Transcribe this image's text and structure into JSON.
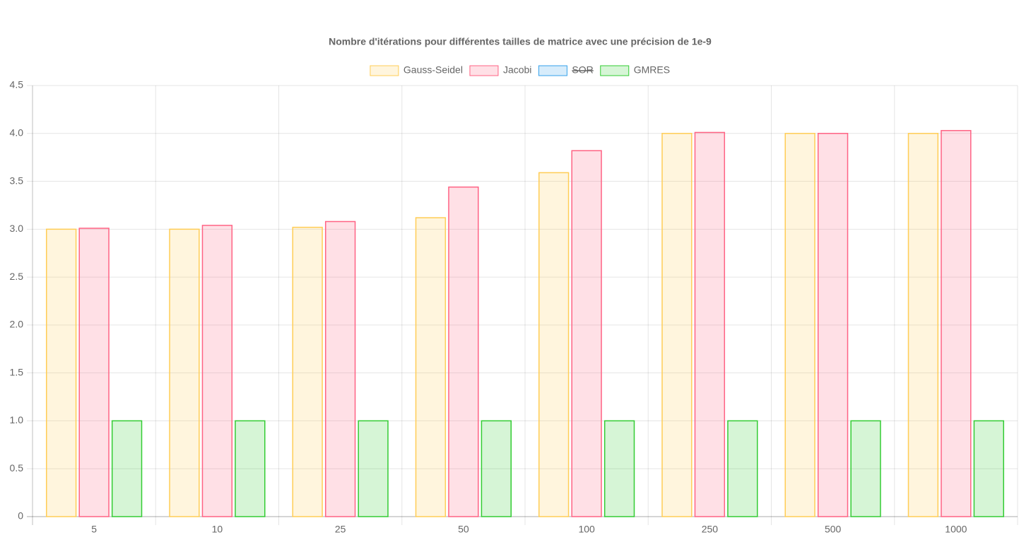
{
  "chart_data": {
    "type": "bar",
    "title": "Nombre d'itérations pour différentes tailles de matrice avec une précision de 1e-9",
    "categories": [
      "5",
      "10",
      "25",
      "50",
      "100",
      "250",
      "500",
      "1000"
    ],
    "series": [
      {
        "name": "Gauss-Seidel",
        "color": "rgb(255,205,86)",
        "fill": "rgba(255,205,86,0.2)",
        "values": [
          3,
          3,
          3.02,
          3.12,
          3.59,
          4,
          4,
          4
        ]
      },
      {
        "name": "Jacobi",
        "color": "rgb(255,99,132)",
        "fill": "rgba(255,99,132,0.2)",
        "values": [
          3.01,
          3.04,
          3.08,
          3.44,
          3.82,
          4.01,
          4,
          4.03
        ]
      },
      {
        "name": "SOR",
        "color": "rgb(54,162,235)",
        "fill": "rgba(54,162,235,0.2)",
        "hidden": true,
        "values": [
          null,
          null,
          null,
          null,
          null,
          null,
          null,
          null
        ]
      },
      {
        "name": "GMRES",
        "color": "rgb(51,204,51)",
        "fill": "rgba(51,204,51,0.2)",
        "values": [
          1,
          1,
          1,
          1,
          1,
          1,
          1,
          1
        ]
      }
    ],
    "ylim": [
      0,
      4.5
    ],
    "yticks": [
      0,
      0.5,
      {
        "value": 1,
        "label": "1.0"
      },
      1.5,
      {
        "value": 2,
        "label": "2.0"
      },
      2.5,
      {
        "value": 3,
        "label": "3.0"
      },
      3.5,
      {
        "value": 4,
        "label": "4.0"
      },
      4.5
    ],
    "grid": true,
    "legend": "top"
  }
}
